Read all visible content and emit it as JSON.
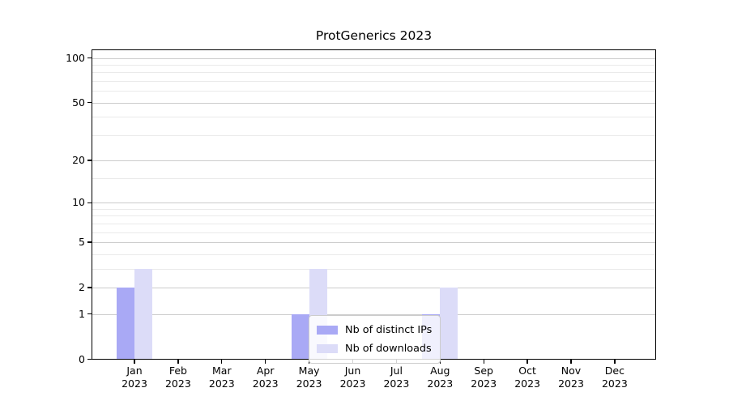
{
  "chart_data": {
    "type": "bar",
    "title": "ProtGenerics 2023",
    "categories": [
      {
        "month": "Jan",
        "year": "2023"
      },
      {
        "month": "Feb",
        "year": "2023"
      },
      {
        "month": "Mar",
        "year": "2023"
      },
      {
        "month": "Apr",
        "year": "2023"
      },
      {
        "month": "May",
        "year": "2023"
      },
      {
        "month": "Jun",
        "year": "2023"
      },
      {
        "month": "Jul",
        "year": "2023"
      },
      {
        "month": "Aug",
        "year": "2023"
      },
      {
        "month": "Sep",
        "year": "2023"
      },
      {
        "month": "Oct",
        "year": "2023"
      },
      {
        "month": "Nov",
        "year": "2023"
      },
      {
        "month": "Dec",
        "year": "2023"
      }
    ],
    "series": [
      {
        "name": "Nb of distinct IPs",
        "color": "#a9a9f5",
        "values": [
          2,
          0,
          0,
          0,
          1,
          0,
          0,
          1,
          0,
          0,
          0,
          0
        ]
      },
      {
        "name": "Nb of downloads",
        "color": "#dcdcf8",
        "values": [
          3,
          0,
          0,
          0,
          3,
          0,
          0,
          2,
          0,
          0,
          0,
          0
        ]
      }
    ],
    "y_axis": {
      "scale": "log1p",
      "major_ticks": [
        0,
        1,
        2,
        5,
        10,
        20,
        50,
        100
      ],
      "minor_ticks": [
        3,
        4,
        6,
        7,
        8,
        9,
        15,
        30,
        40,
        60,
        70,
        80,
        90
      ],
      "range": [
        0,
        115
      ]
    },
    "x_axis": {
      "tick_label_format": "month-over-year"
    },
    "legend": {
      "position": "lower-center-inside",
      "entries": [
        "Nb of distinct IPs",
        "Nb of downloads"
      ]
    },
    "grid": {
      "horizontal_major": true,
      "horizontal_minor": true,
      "vertical": false
    },
    "colors": {
      "background": "#ffffff",
      "axis": "#000000",
      "grid_major": "#cccccc",
      "grid_minor": "#eaeaea",
      "text": "#000000"
    }
  }
}
